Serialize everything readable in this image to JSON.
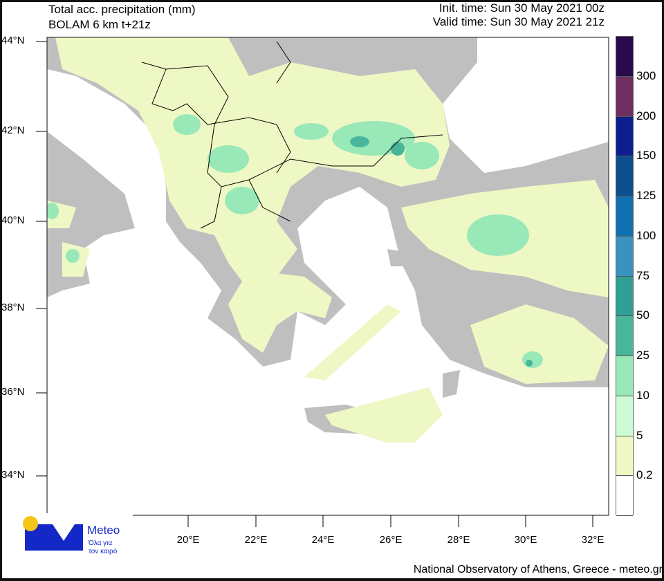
{
  "header": {
    "title": "Total acc. precipitation (mm)",
    "model": "BOLAM 6 km t+21z",
    "init_time": "Init. time: Sun 30 May 2021 00z",
    "valid_time": "Valid time: Sun 30 May 2021 21z"
  },
  "map": {
    "lat_labels": [
      "44°N",
      "42°N",
      "40°N",
      "38°N",
      "36°N",
      "34°N"
    ],
    "lon_labels": [
      "20°E",
      "22°E",
      "24°E",
      "26°E",
      "28°E",
      "30°E",
      "32°E"
    ],
    "colors": {
      "sea": "#ffffff",
      "land_dry": "#bfbfbf",
      "borders": "#000000"
    }
  },
  "colorbar": {
    "labels": [
      "300",
      "200",
      "150",
      "125",
      "100",
      "75",
      "50",
      "25",
      "10",
      "5",
      "0.2"
    ],
    "colors": [
      "#2a0a4a",
      "#6e2f63",
      "#0d1f8f",
      "#0c4f8c",
      "#1070b0",
      "#3a93bf",
      "#2f9f94",
      "#49b69b",
      "#98e8b8",
      "#ccfcd4",
      "#eef8c4",
      "#ffffff"
    ]
  },
  "logo": {
    "name": "Meteo",
    "tagline1": "Όλα για",
    "tagline2": "τον καιρό",
    "blue": "#1428c8",
    "yellow": "#f5c518"
  },
  "footer": {
    "credit": "National Observatory of Athens, Greece - meteo.gr"
  }
}
